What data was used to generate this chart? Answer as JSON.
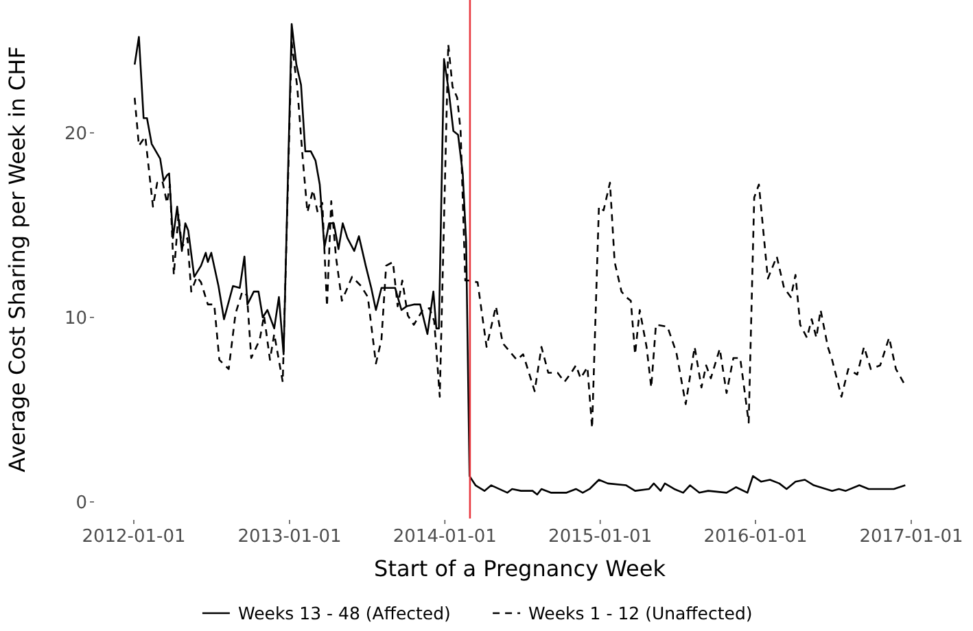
{
  "chart_data": {
    "type": "line",
    "xlabel": "Start of a Pregnancy Week",
    "ylabel": "Average Cost Sharing per Week in CHF",
    "xlim": [
      "2012-01-01",
      "2017-01-01"
    ],
    "ylim": [
      -0.9,
      27.2
    ],
    "xticks": [
      "2012-01-01",
      "2013-01-01",
      "2014-01-01",
      "2015-01-01",
      "2016-01-01",
      "2017-01-01"
    ],
    "yticks": [
      0,
      10,
      20
    ],
    "grid": false,
    "legend": "bottom",
    "marker": "none",
    "ref_lines": [
      {
        "axis": "x",
        "value": "2014-03-01",
        "color": "#e8363e"
      }
    ],
    "series": [
      {
        "name": "Weeks 13 - 48 (Affected)",
        "color": "#000000",
        "line_style": "solid",
        "x": [
          "2012-01-03",
          "2012-01-13",
          "2012-01-24",
          "2012-02-01",
          "2012-02-12",
          "2012-03-03",
          "2012-03-11",
          "2012-03-19",
          "2012-03-24",
          "2012-04-02",
          "2012-04-12",
          "2012-04-23",
          "2012-05-01",
          "2012-05-08",
          "2012-05-22",
          "2012-06-07",
          "2012-06-18",
          "2012-06-23",
          "2012-07-01",
          "2012-07-18",
          "2012-07-31",
          "2012-08-21",
          "2012-09-06",
          "2012-09-17",
          "2012-09-24",
          "2012-10-09",
          "2012-10-20",
          "2012-10-30",
          "2012-11-10",
          "2012-11-26",
          "2012-12-07",
          "2012-12-18",
          "2013-01-06",
          "2013-01-17",
          "2013-01-28",
          "2013-02-07",
          "2013-02-20",
          "2013-03-03",
          "2013-03-13",
          "2013-03-24",
          "2013-04-04",
          "2013-04-15",
          "2013-04-26",
          "2013-05-06",
          "2013-05-17",
          "2013-06-02",
          "2013-06-13",
          "2013-06-29",
          "2013-07-12",
          "2013-07-23",
          "2013-08-05",
          "2013-08-21",
          "2013-09-06",
          "2013-09-21",
          "2013-10-03",
          "2013-10-20",
          "2013-11-04",
          "2013-11-21",
          "2013-12-05",
          "2013-12-12",
          "2013-12-18",
          "2013-12-30",
          "2014-01-10",
          "2014-01-21",
          "2014-02-01",
          "2014-02-12",
          "2014-02-20",
          "2014-02-28",
          "2014-03-14",
          "2014-04-04",
          "2014-04-20",
          "2014-05-28",
          "2014-06-08",
          "2014-06-29",
          "2014-07-26",
          "2014-08-06",
          "2014-08-16",
          "2014-09-07",
          "2014-10-14",
          "2014-11-05",
          "2014-11-21",
          "2014-12-07",
          "2014-12-29",
          "2015-01-19",
          "2015-03-03",
          "2015-03-24",
          "2015-04-26",
          "2015-05-07",
          "2015-05-23",
          "2015-06-02",
          "2015-06-24",
          "2015-07-15",
          "2015-07-31",
          "2015-08-22",
          "2015-09-12",
          "2015-10-25",
          "2015-11-16",
          "2015-12-13",
          "2015-12-26",
          "2016-01-14",
          "2016-02-04",
          "2016-02-26",
          "2016-03-14",
          "2016-04-04",
          "2016-04-26",
          "2016-05-17",
          "2016-06-29",
          "2016-07-15",
          "2016-07-31",
          "2016-09-01",
          "2016-09-23",
          "2016-10-25",
          "2016-11-21",
          "2016-12-18"
        ],
        "values": [
          23.7,
          25.2,
          20.8,
          20.8,
          19.4,
          18.6,
          17.4,
          17.7,
          17.8,
          14.3,
          16.0,
          13.6,
          15.1,
          14.7,
          12.2,
          12.8,
          13.5,
          13.0,
          13.5,
          11.7,
          9.9,
          11.7,
          11.6,
          13.3,
          10.7,
          11.4,
          11.4,
          10.0,
          10.4,
          9.4,
          11.1,
          8.0,
          25.9,
          23.7,
          22.6,
          19.0,
          19.0,
          18.5,
          17.2,
          13.8,
          15.1,
          15.1,
          13.7,
          15.1,
          14.3,
          13.6,
          14.4,
          12.8,
          11.6,
          10.4,
          11.6,
          11.6,
          11.6,
          10.4,
          10.6,
          10.7,
          10.7,
          9.1,
          11.4,
          9.4,
          9.4,
          24.0,
          22.3,
          20.1,
          19.9,
          17.8,
          14.1,
          1.4,
          0.9,
          0.6,
          0.9,
          0.5,
          0.7,
          0.6,
          0.6,
          0.4,
          0.7,
          0.5,
          0.5,
          0.7,
          0.5,
          0.7,
          1.2,
          1.0,
          0.9,
          0.6,
          0.7,
          1.0,
          0.6,
          1.0,
          0.7,
          0.5,
          0.9,
          0.5,
          0.6,
          0.5,
          0.8,
          0.5,
          1.4,
          1.1,
          1.2,
          1.0,
          0.7,
          1.1,
          1.2,
          0.9,
          0.6,
          0.7,
          0.6,
          0.9,
          0.7,
          0.7,
          0.7,
          0.9
        ]
      },
      {
        "name": "Weeks 1 - 12 (Unaffected)",
        "color": "#000000",
        "line_style": "dashed",
        "x": [
          "2012-01-03",
          "2012-01-13",
          "2012-01-28",
          "2012-02-15",
          "2012-02-25",
          "2012-03-08",
          "2012-03-19",
          "2012-03-26",
          "2012-04-04",
          "2012-04-15",
          "2012-04-23",
          "2012-05-06",
          "2012-05-15",
          "2012-05-28",
          "2012-06-07",
          "2012-06-23",
          "2012-07-08",
          "2012-07-20",
          "2012-08-11",
          "2012-08-27",
          "2012-09-12",
          "2012-09-23",
          "2012-10-03",
          "2012-10-23",
          "2012-11-02",
          "2012-11-16",
          "2012-11-26",
          "2012-12-16",
          "2013-01-06",
          "2013-01-19",
          "2013-02-01",
          "2013-02-12",
          "2013-02-25",
          "2013-03-08",
          "2013-03-19",
          "2013-03-30",
          "2013-04-09",
          "2013-04-20",
          "2013-05-04",
          "2013-05-28",
          "2013-06-18",
          "2013-07-04",
          "2013-07-23",
          "2013-08-05",
          "2013-08-16",
          "2013-09-01",
          "2013-09-12",
          "2013-09-23",
          "2013-10-06",
          "2013-10-20",
          "2013-11-10",
          "2013-11-26",
          "2013-12-07",
          "2013-12-20",
          "2014-01-09",
          "2014-01-19",
          "2014-01-30",
          "2014-02-07",
          "2014-02-18",
          "2014-02-26",
          "2014-03-19",
          "2014-04-09",
          "2014-05-01",
          "2014-05-17",
          "2014-06-19",
          "2014-07-04",
          "2014-07-31",
          "2014-08-16",
          "2014-09-01",
          "2014-09-23",
          "2014-10-09",
          "2014-10-25",
          "2014-11-05",
          "2014-11-16",
          "2014-12-02",
          "2014-12-13",
          "2014-12-29",
          "2015-01-09",
          "2015-01-24",
          "2015-02-04",
          "2015-02-20",
          "2015-03-03",
          "2015-03-14",
          "2015-03-24",
          "2015-04-04",
          "2015-04-20",
          "2015-05-01",
          "2015-05-12",
          "2015-06-08",
          "2015-06-29",
          "2015-07-21",
          "2015-08-11",
          "2015-08-27",
          "2015-09-07",
          "2015-09-18",
          "2015-10-09",
          "2015-10-25",
          "2015-11-10",
          "2015-11-26",
          "2015-12-07",
          "2015-12-16",
          "2015-12-29",
          "2016-01-09",
          "2016-01-30",
          "2016-02-20",
          "2016-03-08",
          "2016-03-24",
          "2016-04-04",
          "2016-04-15",
          "2016-05-01",
          "2016-05-12",
          "2016-05-23",
          "2016-06-02",
          "2016-06-19",
          "2016-06-29",
          "2016-07-21",
          "2016-08-06",
          "2016-08-27",
          "2016-09-12",
          "2016-09-28",
          "2016-10-20",
          "2016-11-10",
          "2016-11-26",
          "2016-12-18"
        ],
        "values": [
          21.9,
          19.3,
          19.8,
          16.0,
          17.3,
          17.4,
          16.2,
          17.2,
          12.3,
          15.6,
          13.8,
          14.3,
          11.4,
          12.2,
          11.9,
          10.7,
          10.7,
          7.7,
          7.2,
          10.2,
          11.4,
          11.2,
          7.8,
          8.8,
          10.1,
          7.7,
          9.1,
          6.5,
          24.9,
          22.5,
          18.6,
          15.7,
          16.9,
          15.7,
          16.2,
          10.6,
          16.3,
          13.3,
          10.9,
          12.2,
          11.7,
          11.1,
          7.5,
          8.8,
          12.8,
          13.0,
          10.6,
          12.0,
          10.1,
          9.6,
          10.4,
          10.5,
          9.8,
          5.7,
          24.8,
          22.5,
          21.9,
          20.1,
          12.0,
          12.0,
          11.9,
          8.4,
          10.6,
          8.6,
          7.7,
          8.0,
          6.0,
          8.4,
          7.0,
          7.0,
          6.5,
          7.0,
          7.4,
          6.7,
          7.3,
          4.0,
          16.0,
          15.8,
          17.3,
          13.0,
          11.4,
          11.1,
          10.9,
          8.0,
          10.4,
          8.4,
          6.2,
          9.6,
          9.5,
          8.1,
          5.3,
          8.4,
          6.2,
          7.4,
          6.7,
          8.3,
          5.9,
          7.8,
          7.8,
          5.9,
          4.3,
          16.5,
          17.2,
          12.1,
          13.3,
          11.6,
          11.1,
          12.3,
          9.6,
          8.9,
          9.9,
          8.9,
          10.4,
          8.4,
          7.7,
          5.7,
          7.2,
          6.9,
          8.4,
          7.2,
          7.4,
          8.9,
          7.2,
          6.3
        ]
      }
    ]
  }
}
